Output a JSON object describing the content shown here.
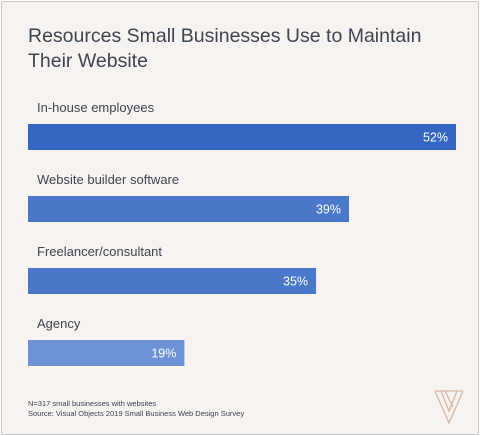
{
  "title": "Resources Small Businesses Use to Maintain Their Website",
  "colors": {
    "bar_dark": "#3566c2",
    "bar_mid": "#4a79ca",
    "bar_light": "#6c91d6",
    "text": "#3e4550",
    "label": "#ffffff",
    "logo": "#d9b6a4"
  },
  "chart_data": {
    "type": "bar",
    "orientation": "horizontal",
    "title": "Resources Small Businesses Use to Maintain Their Website",
    "xlabel": "",
    "ylabel": "",
    "xlim": [
      0,
      52
    ],
    "categories": [
      "In-house employees",
      "Website builder software",
      "Freelancer/consultant",
      "Agency"
    ],
    "values": [
      52,
      39,
      35,
      19
    ],
    "value_labels": [
      "52%",
      "39%",
      "35%",
      "19%"
    ],
    "grid": false,
    "legend": "none"
  },
  "footnotes": {
    "sample": "N=317 small businesses with websites",
    "source": "Source: Visual Objects 2019 Small Business Web Design Survey"
  },
  "logo": {
    "icon": "visual-objects-logo"
  }
}
